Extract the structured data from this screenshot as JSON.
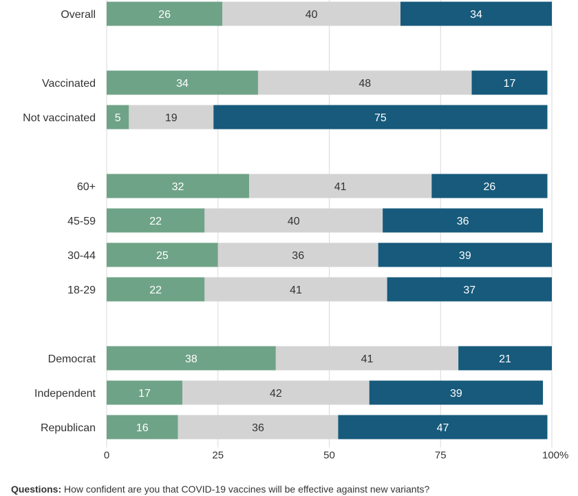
{
  "chart_data": {
    "type": "bar",
    "orientation": "horizontal",
    "stacked": true,
    "categories": [
      "Overall",
      "Vaccinated",
      "Not vaccinated",
      "60+",
      "45-59",
      "30-44",
      "18-29",
      "Democrat",
      "Independent",
      "Republican"
    ],
    "groups": [
      [
        "Overall"
      ],
      [
        "Vaccinated",
        "Not vaccinated"
      ],
      [
        "60+",
        "45-59",
        "30-44",
        "18-29"
      ],
      [
        "Democrat",
        "Independent",
        "Republican"
      ]
    ],
    "series": [
      {
        "values": [
          26,
          34,
          5,
          32,
          22,
          25,
          22,
          38,
          17,
          16
        ],
        "color": "#6fa387",
        "label_color": "#ffffff"
      },
      {
        "values": [
          40,
          48,
          19,
          41,
          40,
          36,
          41,
          41,
          42,
          36
        ],
        "color": "#d3d3d3",
        "label_color": "#333333"
      },
      {
        "values": [
          34,
          17,
          75,
          26,
          36,
          39,
          37,
          21,
          39,
          47
        ],
        "color": "#175a7b",
        "label_color": "#ffffff"
      }
    ],
    "x_ticks": [
      "0",
      "25",
      "50",
      "75",
      "100"
    ],
    "x_tick_values": [
      0,
      25,
      50,
      75,
      100
    ],
    "x_unit": "%",
    "xlim": [
      0,
      100
    ],
    "grid": true
  },
  "footnote": {
    "label": "Questions:",
    "text": "How confident are you that COVID-19 vaccines will be effective against new variants?"
  }
}
